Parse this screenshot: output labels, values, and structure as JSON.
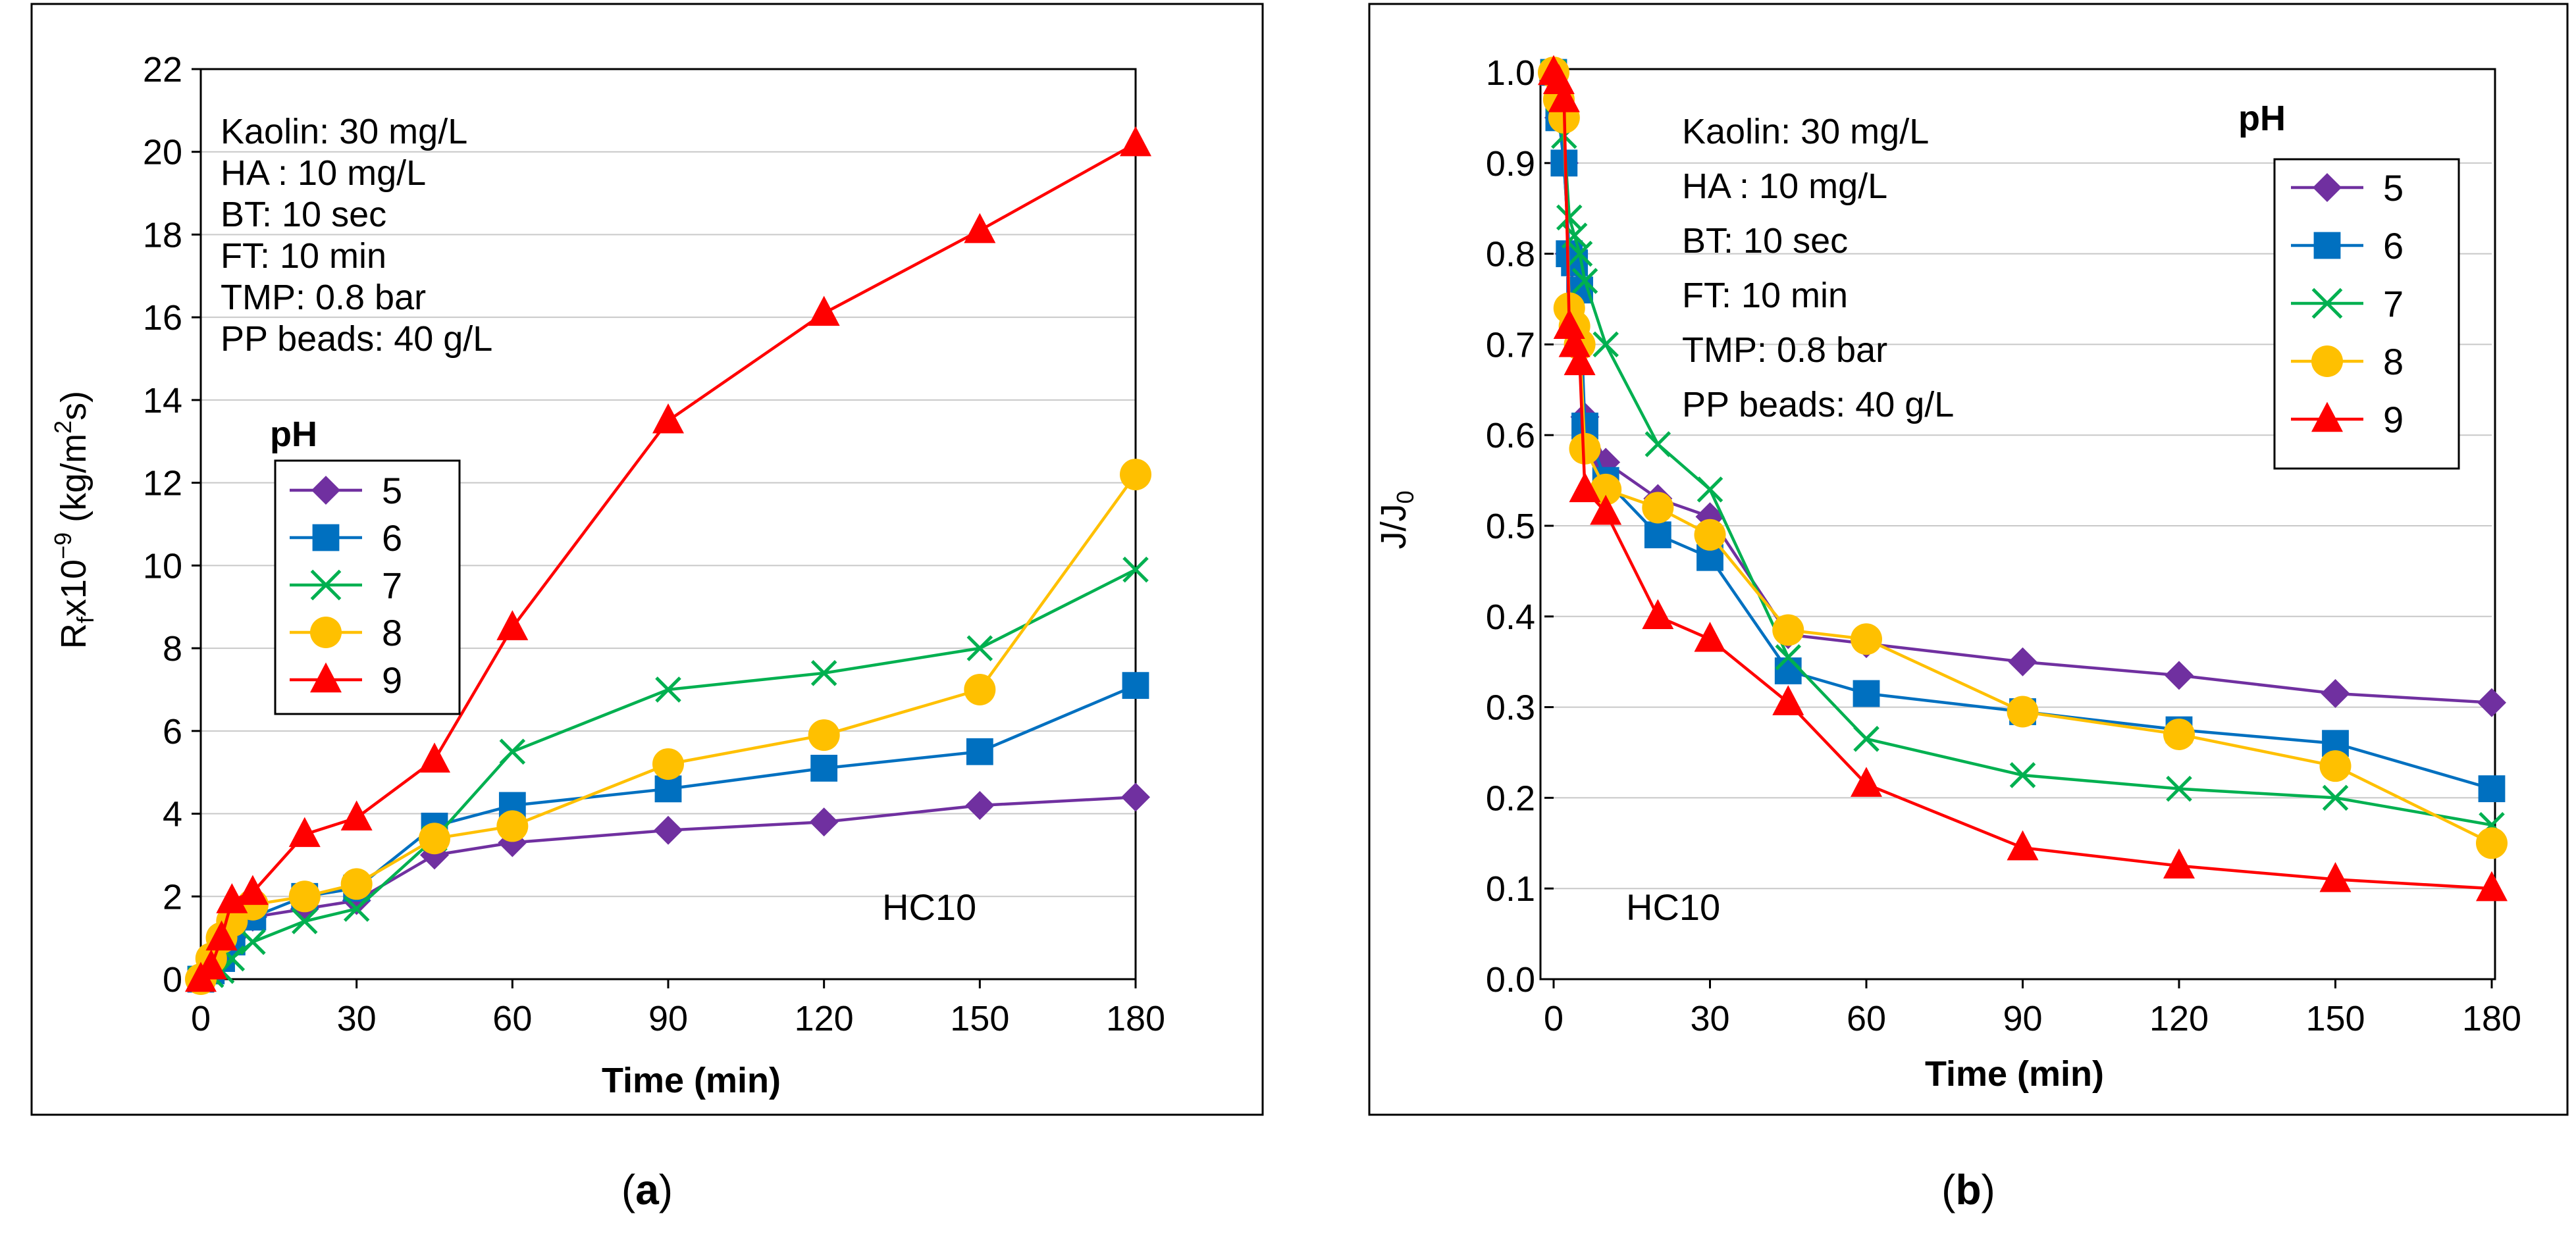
{
  "chart_data": [
    {
      "panel": "a",
      "type": "line",
      "caption": "(a)",
      "caption_letter": "a",
      "ylabel_prefix": "R",
      "ylabel_sub": "f",
      "ylabel_mid": "x10",
      "ylabel_sup": "−9",
      "ylabel_unit_open": " (kg/m",
      "ylabel_unit_sup": "2",
      "ylabel_unit_close": "s)",
      "xlabel": "Time (min)",
      "xlim": [
        0,
        180
      ],
      "ylim": [
        0,
        22
      ],
      "xticks": [
        "0",
        "30",
        "60",
        "90",
        "120",
        "150",
        "180"
      ],
      "yticks": [
        "0",
        "2",
        "4",
        "6",
        "8",
        "10",
        "12",
        "14",
        "16",
        "18",
        "20",
        "22"
      ],
      "annotations": [
        "Kaolin: 30 mg/L",
        "HA : 10 mg/L",
        "BT: 10 sec",
        "FT: 10 min",
        "TMP: 0.8 bar",
        "PP beads: 40 g/L"
      ],
      "corner_label": "HC10",
      "legend_title": "pH",
      "legend_position": "middle-left",
      "series": [
        {
          "name": "5",
          "x": [
            0,
            2,
            4,
            6,
            10,
            20,
            30,
            45,
            60,
            90,
            120,
            150,
            180
          ],
          "values": [
            0,
            0.3,
            0.6,
            1.0,
            1.5,
            1.7,
            1.9,
            3.0,
            3.3,
            3.6,
            3.8,
            4.2,
            4.4
          ]
        },
        {
          "name": "6",
          "x": [
            0,
            2,
            4,
            6,
            10,
            20,
            30,
            45,
            60,
            90,
            120,
            150,
            180
          ],
          "values": [
            0,
            0.2,
            0.5,
            0.9,
            1.5,
            2.0,
            2.2,
            3.7,
            4.2,
            4.6,
            5.1,
            5.5,
            7.1
          ]
        },
        {
          "name": "7",
          "x": [
            0,
            2,
            4,
            6,
            10,
            20,
            30,
            45,
            60,
            90,
            120,
            150,
            180
          ],
          "values": [
            0,
            0.1,
            0.2,
            0.5,
            0.9,
            1.4,
            1.7,
            3.4,
            5.5,
            7.0,
            7.4,
            8.0,
            9.9
          ]
        },
        {
          "name": "8",
          "x": [
            0,
            2,
            4,
            6,
            10,
            20,
            30,
            45,
            60,
            90,
            120,
            150,
            180
          ],
          "values": [
            0,
            0.5,
            1.0,
            1.4,
            1.8,
            2.0,
            2.3,
            3.4,
            3.7,
            5.2,
            5.9,
            7.0,
            12.2
          ]
        },
        {
          "name": "9",
          "x": [
            0,
            2,
            4,
            6,
            10,
            20,
            30,
            45,
            60,
            90,
            120,
            150,
            180
          ],
          "values": [
            0,
            0.3,
            1.0,
            1.9,
            2.1,
            3.5,
            3.9,
            5.3,
            8.5,
            13.5,
            16.1,
            18.1,
            20.2
          ]
        }
      ]
    },
    {
      "panel": "b",
      "type": "line",
      "caption": "(b)",
      "caption_letter": "b",
      "ylabel_prefix": "J/J",
      "ylabel_sub": "0",
      "xlabel": "Time (min)",
      "xlim": [
        0,
        180
      ],
      "ylim": [
        0,
        1.0
      ],
      "xticks": [
        "0",
        "30",
        "60",
        "90",
        "120",
        "150",
        "180"
      ],
      "yticks": [
        "0.0",
        "0.1",
        "0.2",
        "0.3",
        "0.4",
        "0.5",
        "0.6",
        "0.7",
        "0.8",
        "0.9",
        "1.0"
      ],
      "annotations": [
        "Kaolin: 30 mg/L",
        "HA : 10 mg/L",
        "BT: 10 sec",
        "FT: 10 min",
        "TMP: 0.8 bar",
        "PP beads: 40 g/L"
      ],
      "corner_label": "HC10",
      "legend_title": "pH",
      "legend_position": "top-right",
      "series": [
        {
          "name": "5",
          "x": [
            0,
            1,
            2,
            3,
            4,
            5,
            6,
            10,
            20,
            30,
            45,
            60,
            90,
            120,
            150,
            180
          ],
          "values": [
            1.0,
            0.95,
            0.9,
            0.8,
            0.75,
            0.7,
            0.62,
            0.57,
            0.53,
            0.51,
            0.38,
            0.37,
            0.35,
            0.335,
            0.315,
            0.305
          ]
        },
        {
          "name": "6",
          "x": [
            0,
            1,
            2,
            3,
            4,
            5,
            6,
            10,
            20,
            30,
            45,
            60,
            90,
            120,
            150,
            180
          ],
          "values": [
            1.0,
            0.95,
            0.9,
            0.8,
            0.79,
            0.76,
            0.61,
            0.55,
            0.49,
            0.465,
            0.34,
            0.315,
            0.295,
            0.275,
            0.26,
            0.21
          ]
        },
        {
          "name": "7",
          "x": [
            0,
            1,
            2,
            3,
            4,
            5,
            6,
            10,
            20,
            30,
            45,
            60,
            90,
            120,
            150,
            180
          ],
          "values": [
            1.0,
            0.97,
            0.93,
            0.84,
            0.82,
            0.8,
            0.77,
            0.7,
            0.59,
            0.54,
            0.355,
            0.265,
            0.225,
            0.21,
            0.2,
            0.17
          ]
        },
        {
          "name": "8",
          "x": [
            0,
            1,
            2,
            3,
            4,
            5,
            6,
            10,
            20,
            30,
            45,
            60,
            90,
            120,
            150,
            180
          ],
          "values": [
            1.0,
            0.97,
            0.95,
            0.74,
            0.72,
            0.7,
            0.585,
            0.54,
            0.52,
            0.49,
            0.385,
            0.375,
            0.295,
            0.27,
            0.235,
            0.15
          ]
        },
        {
          "name": "9",
          "x": [
            0,
            1,
            2,
            3,
            4,
            5,
            6,
            10,
            20,
            30,
            45,
            60,
            90,
            120,
            150,
            180
          ],
          "values": [
            1.0,
            0.99,
            0.97,
            0.72,
            0.7,
            0.68,
            0.54,
            0.515,
            0.4,
            0.375,
            0.305,
            0.215,
            0.145,
            0.125,
            0.11,
            0.1
          ]
        }
      ]
    }
  ],
  "styles": {
    "series_colors": [
      "#7030a0",
      "#0070c0",
      "#00b050",
      "#ffc000",
      "#ff0000"
    ],
    "series_markers": [
      "diamond",
      "square",
      "x",
      "circle",
      "triangle"
    ]
  }
}
